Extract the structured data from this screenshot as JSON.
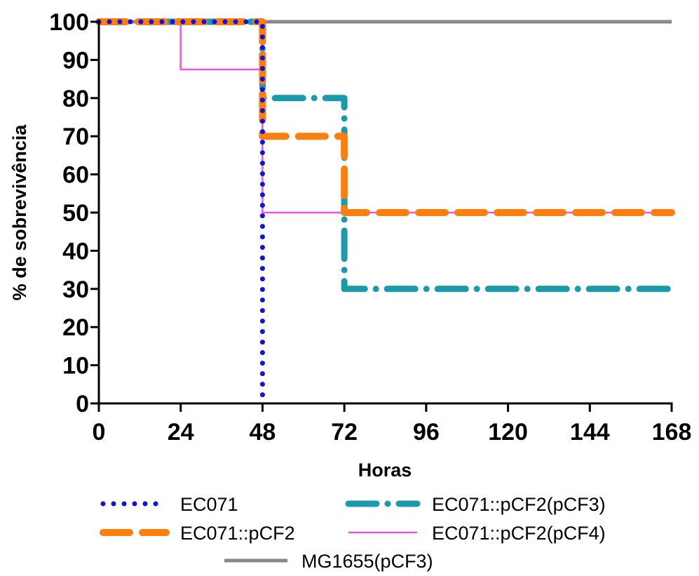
{
  "chart_data": {
    "type": "line",
    "step": true,
    "xlabel": "Horas",
    "ylabel": "% de sobrevivência",
    "xlim": [
      0,
      168
    ],
    "ylim": [
      0,
      100
    ],
    "xticks": [
      0,
      24,
      48,
      72,
      96,
      120,
      144,
      168
    ],
    "yticks": [
      0,
      10,
      20,
      30,
      40,
      50,
      60,
      70,
      80,
      90,
      100
    ],
    "grid": false,
    "legend_position": "bottom",
    "series": [
      {
        "name": "EC071",
        "color": "#1010e6",
        "style": "dotted",
        "x": [
          0,
          48,
          48
        ],
        "y": [
          100,
          100,
          0
        ]
      },
      {
        "name": "EC071::pCF2",
        "color": "#ff7f0e",
        "style": "dashed",
        "x": [
          0,
          48,
          48,
          72,
          72,
          168
        ],
        "y": [
          100,
          100,
          70,
          70,
          50,
          50
        ]
      },
      {
        "name": "EC071::pCF2(pCF3)",
        "color": "#1a9aaa",
        "style": "dash-dot",
        "x": [
          0,
          48,
          48,
          72,
          72,
          168
        ],
        "y": [
          100,
          100,
          80,
          80,
          30,
          30
        ]
      },
      {
        "name": "EC071::pCF2(pCF4)",
        "color": "#ee55dd",
        "style": "solid",
        "x": [
          0,
          24,
          24,
          48,
          48,
          168
        ],
        "y": [
          100,
          100,
          87.5,
          87.5,
          50,
          50
        ]
      },
      {
        "name": "MG1655(pCF3)",
        "color": "#888888",
        "style": "solid-thick",
        "x": [
          0,
          168
        ],
        "y": [
          100,
          100
        ]
      }
    ]
  }
}
